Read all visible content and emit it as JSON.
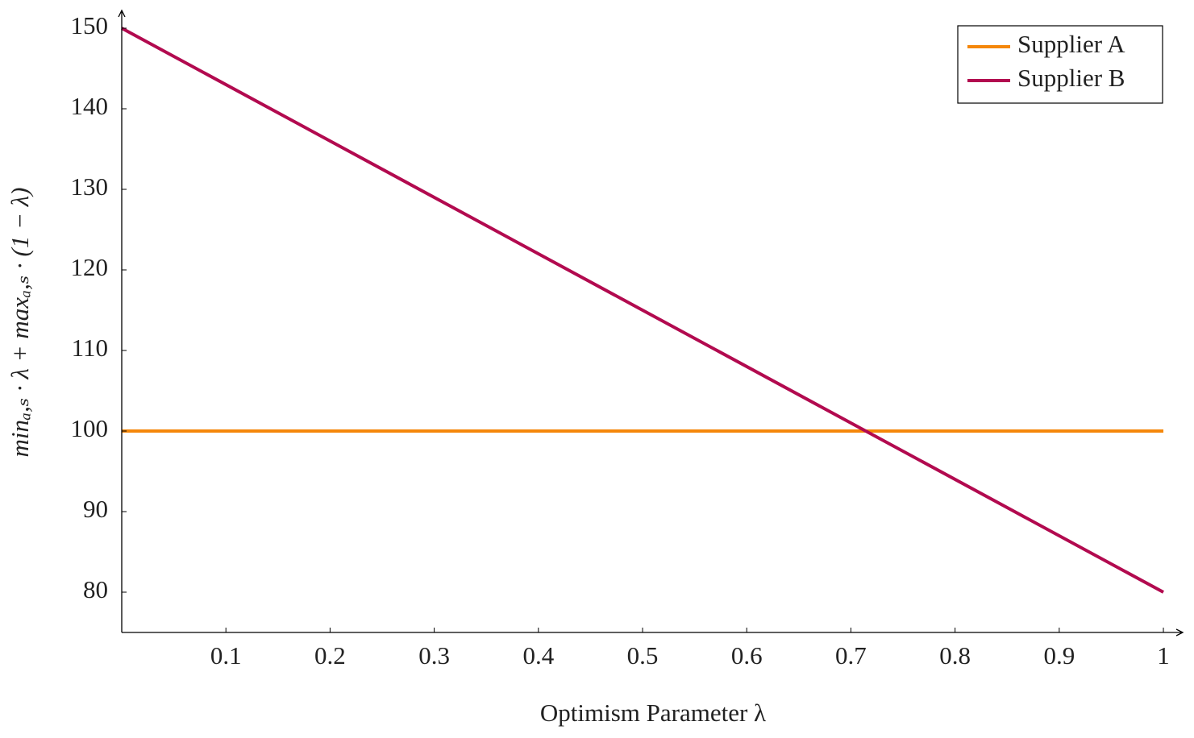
{
  "chart_data": {
    "type": "line",
    "xlabel": "Optimism Parameter λ",
    "ylabel": "minₐ,ₛ · λ + maxₐ,ₛ · (1 − λ)",
    "x": [
      0,
      1
    ],
    "series": [
      {
        "name": "Supplier A",
        "color": "#f5870a",
        "values": [
          100,
          100
        ]
      },
      {
        "name": "Supplier B",
        "color": "#b20a4f",
        "values": [
          150,
          80
        ]
      }
    ],
    "xlim": [
      0,
      1.017
    ],
    "ylim": [
      75,
      152
    ],
    "xticks": [
      0.1,
      0.2,
      0.3,
      0.4,
      0.5,
      0.6,
      0.7,
      0.8,
      0.9,
      1
    ],
    "yticks": [
      80,
      90,
      100,
      110,
      120,
      130,
      140,
      150
    ],
    "legend": "top-right"
  }
}
